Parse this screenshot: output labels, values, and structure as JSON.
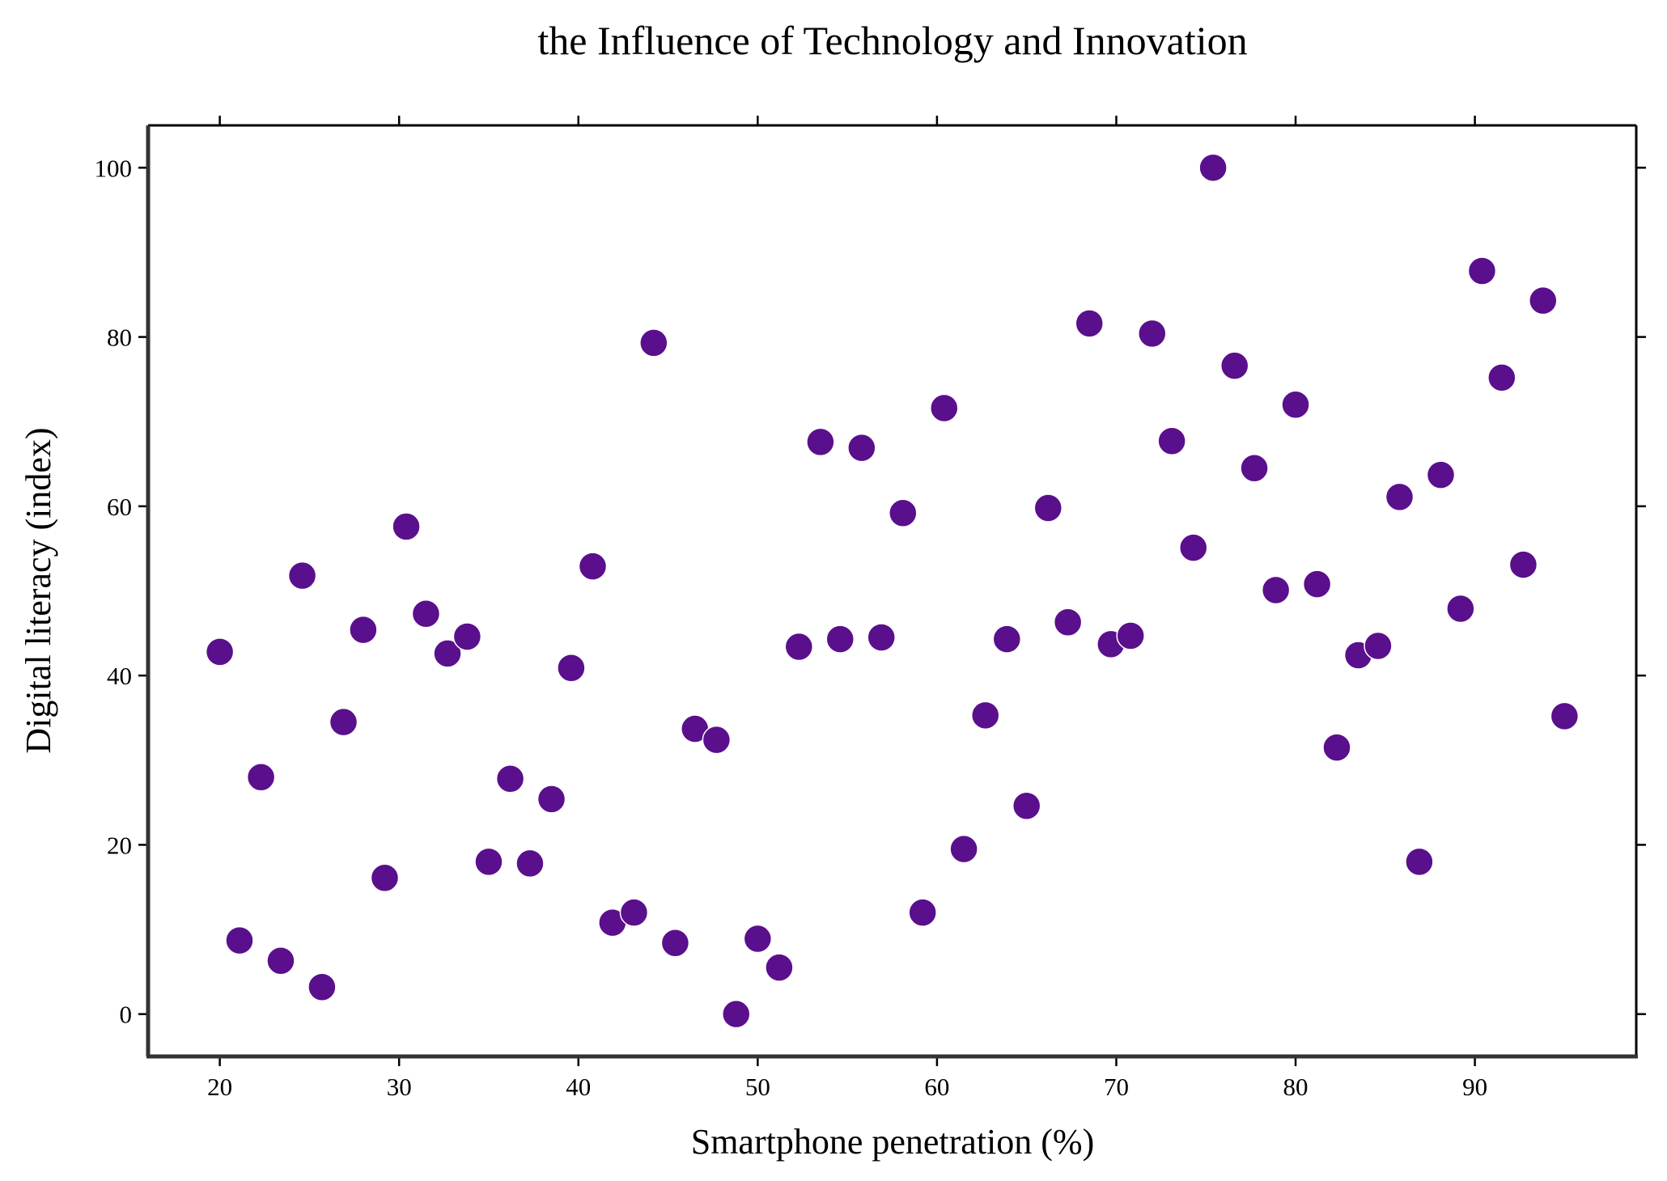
{
  "chart_data": {
    "type": "scatter",
    "title": "the Influence of Technology and Innovation",
    "xlabel": "Smartphone penetration (%)",
    "ylabel": "Digital literacy (index)",
    "xlim": [
      16,
      99
    ],
    "ylim": [
      -5,
      105
    ],
    "xticks": [
      20,
      30,
      40,
      50,
      60,
      70,
      80,
      90
    ],
    "yticks": [
      0,
      20,
      40,
      60,
      80,
      100
    ],
    "grid": false,
    "marker_color": "#5a0f8c",
    "points": [
      {
        "x": 20.0,
        "y": 42.8
      },
      {
        "x": 21.1,
        "y": 8.7
      },
      {
        "x": 22.3,
        "y": 28.0
      },
      {
        "x": 23.4,
        "y": 6.3
      },
      {
        "x": 24.6,
        "y": 51.8
      },
      {
        "x": 25.7,
        "y": 3.2
      },
      {
        "x": 26.9,
        "y": 34.5
      },
      {
        "x": 28.0,
        "y": 45.4
      },
      {
        "x": 29.2,
        "y": 16.1
      },
      {
        "x": 30.4,
        "y": 57.6
      },
      {
        "x": 31.5,
        "y": 47.3
      },
      {
        "x": 32.7,
        "y": 42.6
      },
      {
        "x": 33.8,
        "y": 44.6
      },
      {
        "x": 35.0,
        "y": 18.0
      },
      {
        "x": 36.2,
        "y": 27.8
      },
      {
        "x": 37.3,
        "y": 17.8
      },
      {
        "x": 38.5,
        "y": 25.4
      },
      {
        "x": 39.6,
        "y": 40.9
      },
      {
        "x": 40.8,
        "y": 52.9
      },
      {
        "x": 41.9,
        "y": 10.8
      },
      {
        "x": 43.1,
        "y": 12.0
      },
      {
        "x": 44.2,
        "y": 79.3
      },
      {
        "x": 45.4,
        "y": 8.4
      },
      {
        "x": 46.5,
        "y": 33.7
      },
      {
        "x": 47.7,
        "y": 32.4
      },
      {
        "x": 48.8,
        "y": 0.0
      },
      {
        "x": 50.0,
        "y": 8.9
      },
      {
        "x": 51.2,
        "y": 5.5
      },
      {
        "x": 52.3,
        "y": 43.4
      },
      {
        "x": 53.5,
        "y": 67.6
      },
      {
        "x": 54.6,
        "y": 44.3
      },
      {
        "x": 55.8,
        "y": 66.9
      },
      {
        "x": 56.9,
        "y": 44.5
      },
      {
        "x": 58.1,
        "y": 59.2
      },
      {
        "x": 59.2,
        "y": 12.0
      },
      {
        "x": 60.4,
        "y": 71.6
      },
      {
        "x": 61.5,
        "y": 19.5
      },
      {
        "x": 62.7,
        "y": 35.3
      },
      {
        "x": 63.9,
        "y": 44.3
      },
      {
        "x": 65.0,
        "y": 24.6
      },
      {
        "x": 66.2,
        "y": 59.8
      },
      {
        "x": 67.3,
        "y": 46.3
      },
      {
        "x": 68.5,
        "y": 81.6
      },
      {
        "x": 69.7,
        "y": 43.7
      },
      {
        "x": 70.8,
        "y": 44.7
      },
      {
        "x": 72.0,
        "y": 80.4
      },
      {
        "x": 73.1,
        "y": 67.7
      },
      {
        "x": 74.3,
        "y": 55.1
      },
      {
        "x": 75.4,
        "y": 100.0
      },
      {
        "x": 76.6,
        "y": 76.6
      },
      {
        "x": 77.7,
        "y": 64.5
      },
      {
        "x": 78.9,
        "y": 50.1
      },
      {
        "x": 80.0,
        "y": 72.0
      },
      {
        "x": 81.2,
        "y": 50.8
      },
      {
        "x": 82.3,
        "y": 31.5
      },
      {
        "x": 83.5,
        "y": 42.4
      },
      {
        "x": 84.6,
        "y": 43.5
      },
      {
        "x": 85.8,
        "y": 61.1
      },
      {
        "x": 86.9,
        "y": 18.0
      },
      {
        "x": 88.1,
        "y": 63.7
      },
      {
        "x": 89.2,
        "y": 47.9
      },
      {
        "x": 90.4,
        "y": 87.8
      },
      {
        "x": 91.5,
        "y": 75.2
      },
      {
        "x": 92.7,
        "y": 53.1
      },
      {
        "x": 93.8,
        "y": 84.3
      },
      {
        "x": 95.0,
        "y": 35.2
      }
    ]
  }
}
